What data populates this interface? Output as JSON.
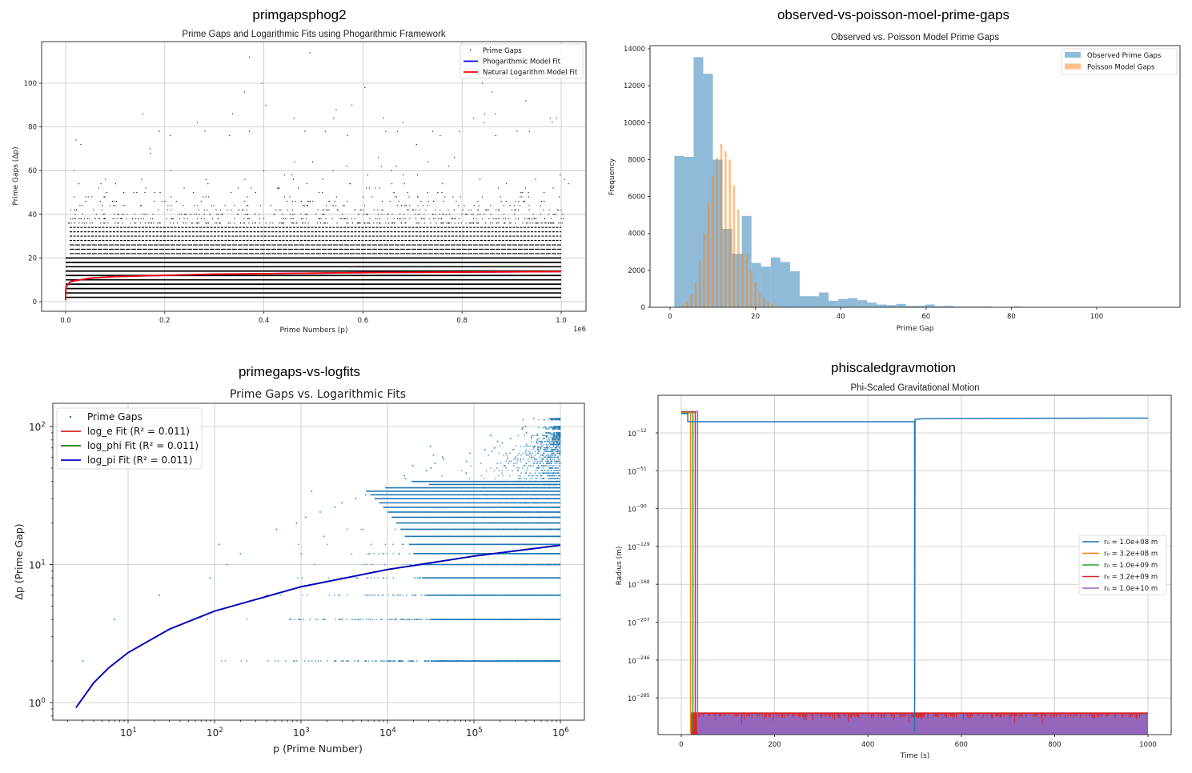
{
  "charts_meta": {
    "figure_titles": [
      "primgapsphog2",
      "observed-vs-poisson-moel-prime-gaps",
      "primegaps-vs-logfits",
      "phiscaledgravmotion"
    ]
  },
  "chart_data": [
    {
      "type": "scatter",
      "figure_title": "primgapsphog2",
      "title": "Prime Gaps and Logarithmic Fits using Phogarithmic Framework",
      "xlabel": "Prime Numbers (p)",
      "ylabel": "Prime Gaps (Δp)",
      "x_offset_label": "1e6",
      "xlim": [
        -50000,
        1050000
      ],
      "ylim": [
        -4,
        119
      ],
      "xticks": [
        0,
        200000,
        400000,
        600000,
        800000,
        1000000
      ],
      "xtick_labels": [
        "0.0",
        "0.2",
        "0.4",
        "0.6",
        "0.8",
        "1.0"
      ],
      "yticks": [
        0,
        20,
        40,
        60,
        80,
        100
      ],
      "ytick_labels": [
        "0",
        "20",
        "40",
        "60",
        "80",
        "100"
      ],
      "grid": true,
      "legend_placement": "top-right",
      "dense_gap_levels": [
        2,
        4,
        6,
        8,
        10,
        12,
        14,
        16,
        18,
        20,
        22,
        24,
        26,
        28,
        30,
        32,
        34
      ],
      "sparse_gap_range": [
        36,
        90
      ],
      "outlier_points": [
        [
          370000,
          112
        ],
        [
          492000,
          114
        ],
        [
          360000,
          96
        ],
        [
          395000,
          100
        ],
        [
          603000,
          98
        ],
        [
          840000,
          100
        ],
        [
          860000,
          96
        ],
        [
          928000,
          92
        ],
        [
          155000,
          86
        ],
        [
          336000,
          86
        ],
        [
          403000,
          90
        ],
        [
          577000,
          90
        ],
        [
          545000,
          88
        ],
        [
          460000,
          84
        ],
        [
          540000,
          84
        ],
        [
          640000,
          84
        ],
        [
          822000,
          84
        ],
        [
          845000,
          86
        ],
        [
          866000,
          86
        ],
        [
          977000,
          84
        ],
        [
          990000,
          84
        ],
        [
          981000,
          82
        ],
        [
          265000,
          82
        ],
        [
          680000,
          82
        ],
        [
          843000,
          82
        ],
        [
          188000,
          78
        ],
        [
          280000,
          78
        ],
        [
          370000,
          78
        ],
        [
          482000,
          78
        ],
        [
          523000,
          78
        ],
        [
          645000,
          78
        ],
        [
          669000,
          78
        ],
        [
          740000,
          78
        ],
        [
          794000,
          78
        ],
        [
          910000,
          78
        ],
        [
          30000,
          72
        ],
        [
          210000,
          76
        ],
        [
          330000,
          76
        ],
        [
          568000,
          76
        ],
        [
          755000,
          76
        ],
        [
          867000,
          76
        ],
        [
          935000,
          78
        ]
      ],
      "series": [
        {
          "name": "Prime Gaps",
          "color": "#000000",
          "marker": "point"
        },
        {
          "name": "Phogarithmic Model Fit",
          "color": "#0000ff"
        },
        {
          "name": "Natural Logarithm Model Fit",
          "color": "#ff0000"
        }
      ],
      "fit_curve": [
        [
          2,
          0.7
        ],
        [
          10,
          2.3
        ],
        [
          100,
          4.6
        ],
        [
          1000,
          6.9
        ],
        [
          10000,
          9.2
        ],
        [
          50000,
          10.8
        ],
        [
          100000,
          11.5
        ],
        [
          300000,
          12.6
        ],
        [
          600000,
          13.3
        ],
        [
          1000000,
          13.8
        ]
      ]
    },
    {
      "type": "bar",
      "figure_title": "observed-vs-poisson-moel-prime-gaps",
      "title": "Observed vs. Poisson Model Prime Gaps",
      "xlabel": "Prime Gap",
      "ylabel": "Frequency",
      "xlim": [
        -5,
        115
      ],
      "ylim": [
        0,
        14200
      ],
      "xticks": [
        0,
        20,
        40,
        60,
        80,
        100
      ],
      "xtick_labels": [
        "0",
        "20",
        "40",
        "60",
        "80",
        "100"
      ],
      "yticks": [
        0,
        2000,
        4000,
        6000,
        8000,
        10000,
        12000,
        14000
      ],
      "ytick_labels": [
        "0",
        "2000",
        "4000",
        "6000",
        "8000",
        "10000",
        "12000",
        "14000"
      ],
      "grid": false,
      "legend_placement": "top-right",
      "series": [
        {
          "name": "Observed Prime Gaps",
          "color": "#1f77b4",
          "alpha": 0.5,
          "bin_start": 1,
          "bin_width": 2.26,
          "values": [
            8200,
            8150,
            13550,
            12650,
            8000,
            4250,
            2900,
            4950,
            2400,
            2200,
            2700,
            2450,
            1950,
            600,
            600,
            800,
            350,
            450,
            500,
            380,
            250,
            150,
            120,
            180,
            80,
            80,
            150,
            60,
            80,
            40,
            40,
            40,
            40,
            20,
            20,
            40,
            10,
            10,
            10,
            10,
            5,
            5,
            5,
            5,
            5,
            5,
            5,
            0,
            0,
            5
          ]
        },
        {
          "name": "Poisson Model Gaps",
          "color": "#ff7f0e",
          "alpha": 0.5,
          "x": [
            2,
            3,
            4,
            5,
            6,
            7,
            8,
            9,
            10,
            11,
            12,
            13,
            14,
            15,
            16,
            17,
            18,
            19,
            20,
            21,
            22,
            23,
            24,
            25
          ],
          "values": [
            30,
            120,
            300,
            700,
            1350,
            2550,
            4000,
            5650,
            7100,
            8100,
            8850,
            8450,
            8000,
            6600,
            5300,
            2900,
            2850,
            1950,
            1350,
            800,
            550,
            300,
            150,
            80
          ]
        }
      ]
    },
    {
      "type": "scatter",
      "figure_title": "primegaps-vs-logfits",
      "title": "Prime Gaps vs. Logarithmic Fits",
      "xlabel": "p (Prime Number)",
      "ylabel": "Δp (Prime Gap)",
      "xscale": "log",
      "yscale": "log",
      "xlim": [
        1.35,
        1900000
      ],
      "ylim": [
        0.74,
        148
      ],
      "xtick_exponents": [
        1,
        2,
        3,
        4,
        5,
        6
      ],
      "ytick_exponents": [
        0,
        1,
        2
      ],
      "tick_base": "10",
      "grid": true,
      "legend_placement": "top-left",
      "gap_first_occurrence": [
        [
          2,
          3
        ],
        [
          4,
          7
        ],
        [
          6,
          23
        ],
        [
          8,
          89
        ],
        [
          10,
          139
        ],
        [
          12,
          199
        ],
        [
          14,
          113
        ],
        [
          16,
          1831
        ],
        [
          18,
          523
        ],
        [
          20,
          887
        ],
        [
          22,
          1129
        ],
        [
          24,
          1669
        ],
        [
          26,
          2477
        ],
        [
          28,
          2971
        ],
        [
          30,
          4297
        ],
        [
          32,
          5591
        ],
        [
          34,
          1327
        ],
        [
          36,
          9551
        ],
        [
          38,
          30593
        ],
        [
          40,
          19333
        ],
        [
          42,
          16141
        ],
        [
          44,
          15683
        ],
        [
          46,
          81463
        ],
        [
          48,
          28229
        ],
        [
          50,
          31907
        ],
        [
          52,
          19609
        ],
        [
          54,
          35617
        ],
        [
          56,
          82073
        ],
        [
          58,
          44293
        ],
        [
          60,
          43331
        ],
        [
          62,
          34061
        ],
        [
          64,
          89689
        ],
        [
          66,
          162143
        ],
        [
          68,
          134513
        ],
        [
          70,
          173359
        ],
        [
          72,
          31397
        ],
        [
          74,
          404597
        ],
        [
          76,
          212701
        ],
        [
          78,
          188029
        ],
        [
          80,
          542603
        ],
        [
          82,
          265621
        ],
        [
          84,
          461717
        ],
        [
          86,
          155921
        ],
        [
          88,
          544279
        ],
        [
          90,
          404851
        ],
        [
          96,
          360653
        ],
        [
          98,
          370261
        ],
        [
          100,
          396733
        ],
        [
          112,
          370261
        ],
        [
          114,
          492113
        ]
      ],
      "series": [
        {
          "name": "Prime Gaps",
          "color": "#1f77b4",
          "marker": "point"
        },
        {
          "name": "log_e Fit (R² = 0.011)",
          "color": "#d62728"
        },
        {
          "name": "log_phi Fit (R² = 0.011)",
          "color": "#008000"
        },
        {
          "name": "log_pi Fit (R² = 0.011)",
          "color": "#0000cc"
        }
      ],
      "fit_curve": [
        [
          2.5,
          0.92
        ],
        [
          4,
          1.39
        ],
        [
          6,
          1.79
        ],
        [
          10,
          2.3
        ],
        [
          30,
          3.4
        ],
        [
          100,
          4.6
        ],
        [
          1000,
          6.9
        ],
        [
          10000,
          9.2
        ],
        [
          100000,
          11.5
        ],
        [
          1000000,
          13.8
        ]
      ]
    },
    {
      "type": "line",
      "figure_title": "phiscaledgravmotion",
      "title": "Phi-Scaled Gravitational Motion",
      "xlabel": "Time (s)",
      "ylabel": "Radius (m)",
      "yscale": "log",
      "xlim": [
        -50,
        1050
      ],
      "ylim_exponent": [
        -323,
        27
      ],
      "xticks": [
        0,
        200,
        400,
        600,
        800,
        1000
      ],
      "xtick_labels": [
        "0",
        "200",
        "400",
        "600",
        "800",
        "1000"
      ],
      "ytick_exponents": [
        -12,
        -51,
        -90,
        -129,
        -168,
        -207,
        -246,
        -285
      ],
      "tick_base": "10",
      "grid": true,
      "legend_placement": "center-right",
      "series": [
        {
          "name": "r₀ = 1.0e+08 m",
          "color": "#1f77b4",
          "points": [
            [
              0,
              8
            ],
            [
              14,
              8
            ],
            [
              14,
              -0.5
            ],
            [
              500,
              -0.5
            ],
            [
              500,
              -320
            ],
            [
              501,
              2
            ],
            [
              520,
              2.6
            ],
            [
              700,
              3
            ],
            [
              1000,
              3.3
            ]
          ]
        },
        {
          "name": "r₀ = 3.2e+08 m",
          "color": "#ff7f0e",
          "points": [
            [
              0,
              8.5
            ],
            [
              20,
              8.5
            ],
            [
              20,
              -320
            ]
          ]
        },
        {
          "name": "r₀ = 1.0e+09 m",
          "color": "#2ca02c",
          "points": [
            [
              0,
              9
            ],
            [
              25,
              9
            ],
            [
              25,
              -320
            ]
          ]
        },
        {
          "name": "r₀ = 3.2e+09 m",
          "color": "#d62728",
          "points": [
            [
              0,
              9.5
            ],
            [
              30,
              9.5
            ],
            [
              30,
              -320
            ]
          ]
        },
        {
          "name": "r₀ = 1.0e+10 m",
          "color": "#9467bd",
          "points": [
            [
              0,
              10
            ],
            [
              35,
              10
            ],
            [
              35,
              -320
            ]
          ]
        }
      ],
      "underflow_band_exponent": [
        -323,
        -300
      ],
      "underflow_band_time": [
        20,
        1000
      ]
    }
  ]
}
